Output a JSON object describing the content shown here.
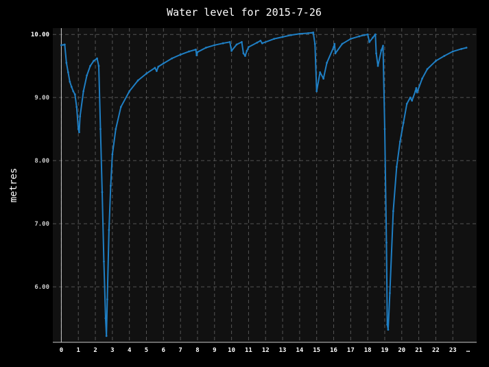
{
  "chart_data": {
    "type": "line",
    "title": "Water level for 2015-7-26",
    "xlabel": "",
    "ylabel": "metres",
    "xlim": [
      -0.5,
      24.4
    ],
    "ylim": [
      5.12,
      10.1
    ],
    "x_tick_labels": [
      "0",
      "1",
      "2",
      "3",
      "4",
      "5",
      "6",
      "7",
      "8",
      "9",
      "10",
      "11",
      "12",
      "13",
      "14",
      "15",
      "16",
      "17",
      "18",
      "19",
      "20",
      "21",
      "22",
      "23",
      "…"
    ],
    "y_tick_labels": [
      "6.00",
      "7.00",
      "8.00",
      "9.00",
      "10.00"
    ],
    "y_tick_values": [
      6.0,
      7.0,
      8.0,
      9.0,
      10.0
    ],
    "grid": true,
    "legend": "none",
    "colors": {
      "background": "#000000",
      "plot_background": "#111111",
      "grid": "#555555",
      "axis": "#cccccc",
      "tick_text": "#cccccc",
      "text": "#ffffff",
      "series": "#1f7fc4"
    },
    "series": [
      {
        "name": "",
        "x": [
          0,
          0.2,
          0.3,
          0.4,
          0.5,
          0.6,
          0.7,
          0.8,
          0.9,
          1.0,
          1.05,
          1.1,
          1.3,
          1.5,
          1.7,
          1.9,
          2.1,
          2.2,
          2.3,
          2.4,
          2.5,
          2.6,
          2.65,
          2.7,
          2.8,
          2.9,
          3.0,
          3.2,
          3.5,
          4.0,
          4.5,
          5.0,
          5.5,
          5.6,
          5.7,
          6.0,
          6.5,
          7.0,
          7.5,
          7.9,
          7.95,
          8.0,
          8.5,
          9.0,
          9.5,
          9.9,
          10.0,
          10.3,
          10.6,
          10.7,
          10.8,
          10.9,
          11.0,
          11.5,
          11.7,
          11.8,
          12.5,
          13.0,
          13.5,
          14.0,
          14.5,
          14.8,
          14.9,
          15.0,
          15.2,
          15.4,
          15.6,
          16.0,
          16.05,
          16.1,
          16.5,
          17.0,
          17.5,
          17.8,
          18.0,
          18.1,
          18.3,
          18.45,
          18.5,
          18.6,
          18.8,
          18.9,
          19.0,
          19.1,
          19.15,
          19.2,
          19.3,
          19.5,
          19.7,
          19.9,
          20.1,
          20.3,
          20.5,
          20.6,
          20.8,
          20.85,
          20.9,
          21.2,
          21.5,
          22.0,
          22.5,
          23.0,
          23.5,
          23.8
        ],
        "y": [
          9.83,
          9.84,
          9.55,
          9.4,
          9.25,
          9.17,
          9.1,
          9.05,
          8.85,
          8.5,
          8.45,
          8.7,
          9.1,
          9.35,
          9.5,
          9.58,
          9.62,
          9.5,
          8.5,
          7.5,
          6.4,
          5.5,
          5.22,
          5.8,
          6.9,
          7.6,
          8.1,
          8.5,
          8.85,
          9.1,
          9.27,
          9.38,
          9.47,
          9.42,
          9.49,
          9.54,
          9.62,
          9.68,
          9.73,
          9.76,
          9.67,
          9.72,
          9.79,
          9.83,
          9.86,
          9.88,
          9.74,
          9.84,
          9.88,
          9.7,
          9.66,
          9.74,
          9.8,
          9.87,
          9.9,
          9.86,
          9.93,
          9.96,
          9.99,
          10.01,
          10.02,
          10.03,
          9.85,
          9.1,
          9.4,
          9.3,
          9.55,
          9.8,
          9.85,
          9.7,
          9.85,
          9.93,
          9.97,
          9.99,
          10.0,
          9.88,
          9.95,
          10.0,
          9.7,
          9.5,
          9.75,
          9.82,
          8.5,
          6.7,
          5.4,
          5.32,
          5.9,
          7.2,
          7.9,
          8.3,
          8.6,
          8.9,
          9.0,
          8.95,
          9.1,
          9.15,
          9.08,
          9.3,
          9.45,
          9.58,
          9.66,
          9.73,
          9.77,
          9.79
        ]
      }
    ]
  }
}
